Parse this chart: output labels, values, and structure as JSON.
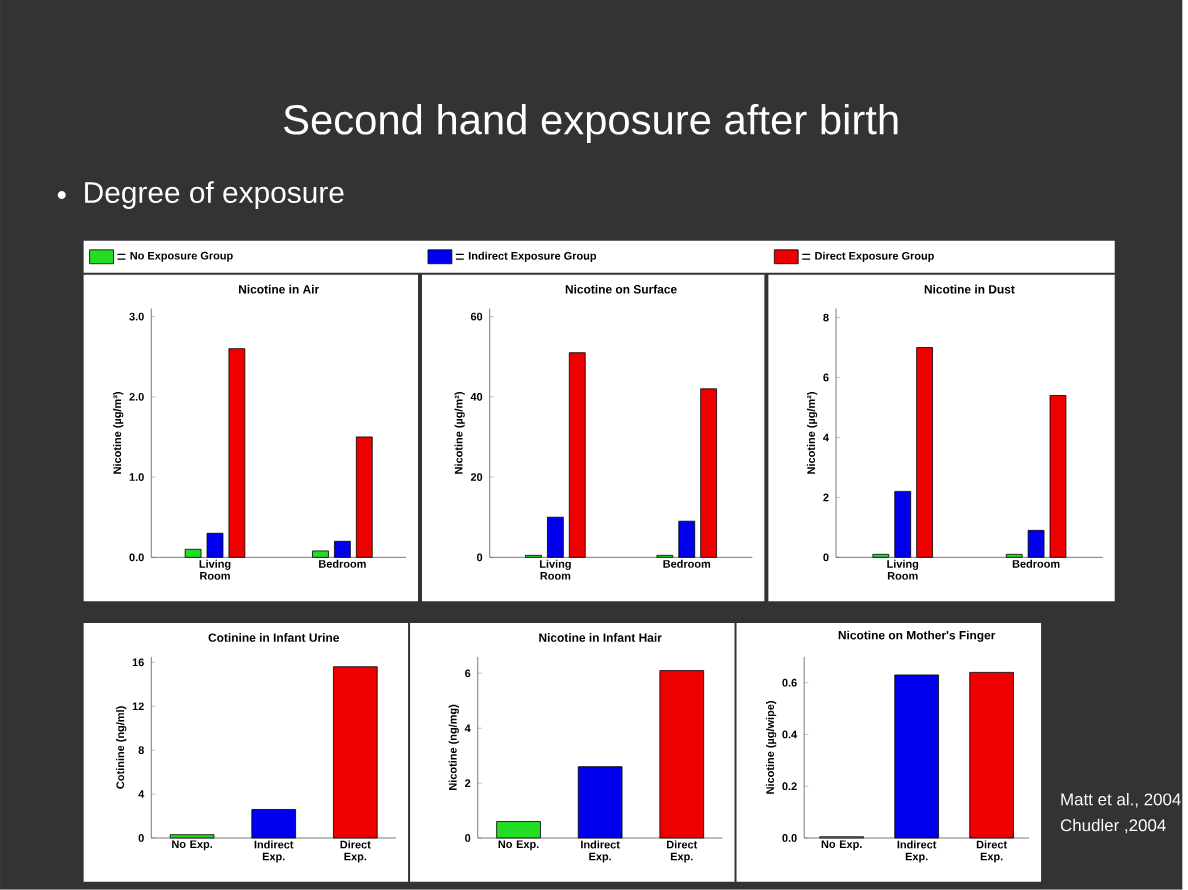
{
  "chart_data": [
    {
      "type": "other",
      "title": "Second hand exposure after birth",
      "subtitle": "Degree of exposure",
      "annotations": [
        "Matt et al., 2004",
        "Chudler ,2004"
      ]
    },
    {
      "type": "bar",
      "title": "Nicotine in Air",
      "ylabel": "Nicotine (µg/m³)",
      "categories": [
        "Living Room",
        "Bedroom"
      ],
      "legend": "top",
      "series": [
        {
          "name": "No Exposure Group",
          "color": "#22dd22",
          "values": [
            0.1,
            0.08
          ]
        },
        {
          "name": "Indirect Exposure Group",
          "color": "#0000ee",
          "values": [
            0.3,
            0.2
          ]
        },
        {
          "name": "Direct Exposure Group",
          "color": "#ee0000",
          "values": [
            2.6,
            1.5
          ]
        }
      ],
      "ylim": [
        0,
        3.1
      ],
      "yticks": [
        {
          "value": 0,
          "label": "0.0"
        },
        {
          "value": 1,
          "label": "1.0"
        },
        {
          "value": 2,
          "label": "2.0"
        },
        {
          "value": 3,
          "label": "3.0"
        }
      ]
    },
    {
      "type": "bar",
      "title": "Nicotine on Surface",
      "ylabel": "Nicotine (µg/m²)",
      "categories": [
        "Living Room",
        "Bedroom"
      ],
      "series": [
        {
          "color": "#22dd22",
          "values": [
            0.5,
            0.5
          ]
        },
        {
          "color": "#0000ee",
          "values": [
            10,
            9
          ]
        },
        {
          "color": "#ee0000",
          "values": [
            51,
            42
          ]
        }
      ],
      "ylim": [
        0,
        62
      ],
      "yticks": [
        0,
        20,
        40,
        60
      ]
    },
    {
      "type": "bar",
      "title": "Nicotine in Dust",
      "ylabel": "Nicotine (µg/m²)",
      "categories": [
        "Living Room",
        "Bedroom"
      ],
      "series": [
        {
          "color": "#22dd22",
          "values": [
            0.1,
            0.1
          ]
        },
        {
          "color": "#0000ee",
          "values": [
            2.2,
            0.9
          ]
        },
        {
          "color": "#ee0000",
          "values": [
            7.0,
            5.4
          ]
        }
      ],
      "ylim": [
        0,
        8.3
      ],
      "yticks": [
        0,
        2,
        4,
        6,
        8
      ]
    },
    {
      "type": "bar",
      "title": "Cotinine in Infant Urine",
      "ylabel": "Cotinine (ng/ml)",
      "categories": [
        "No Exp.",
        "Indirect Exp.",
        "Direct Exp."
      ],
      "values": [
        0.3,
        2.6,
        15.6
      ],
      "colors": [
        "#22dd22",
        "#0000ee",
        "#ee0000"
      ],
      "ylim": [
        0,
        16.5
      ],
      "yticks": [
        0,
        4,
        8,
        12,
        16
      ]
    },
    {
      "type": "bar",
      "title": "Nicotine in Infant Hair",
      "ylabel": "Nicotine (ng/mg)",
      "categories": [
        "No Exp.",
        "Indirect Exp.",
        "Direct Exp."
      ],
      "values": [
        0.6,
        2.6,
        6.1
      ],
      "colors": [
        "#22dd22",
        "#0000ee",
        "#ee0000"
      ],
      "ylim": [
        0,
        6.6
      ],
      "yticks": [
        0,
        2,
        4,
        6
      ]
    },
    {
      "type": "bar",
      "title": "Nicotine on Mother's Finger",
      "ylabel": "Nicotine (µg/wipe)",
      "categories": [
        "No Exp.",
        "Indirect Exp.",
        "Direct Exp."
      ],
      "values": [
        0.005,
        0.63,
        0.64
      ],
      "colors": [
        "#22dd22",
        "#0000ee",
        "#ee0000"
      ],
      "ylim": [
        0,
        0.7
      ],
      "yticks": [
        {
          "value": 0,
          "label": "0.0"
        },
        {
          "value": 0.2,
          "label": "0.2"
        },
        {
          "value": 0.4,
          "label": "0.4"
        },
        {
          "value": 0.6,
          "label": "0.6"
        }
      ]
    }
  ]
}
